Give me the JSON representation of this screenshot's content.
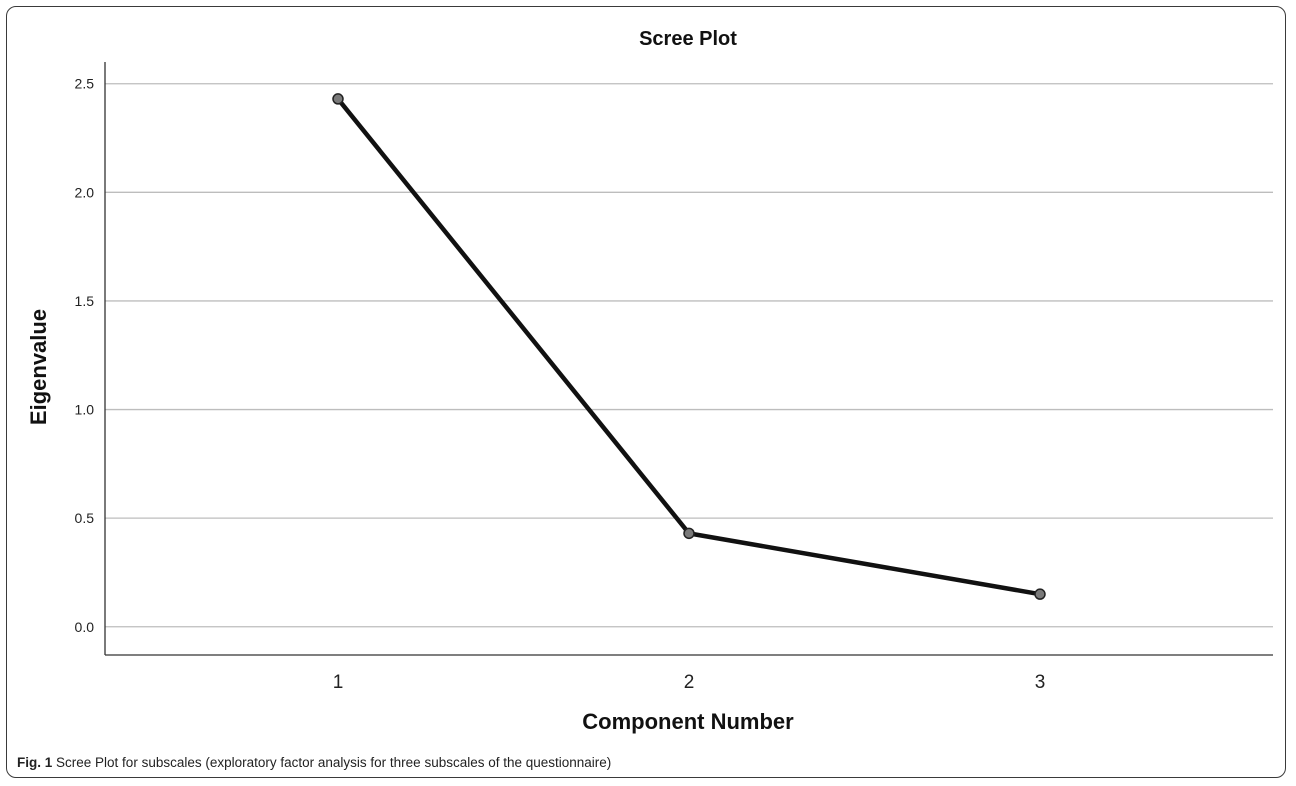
{
  "chart_data": {
    "type": "line",
    "title": "Scree Plot",
    "xlabel": "Component Number",
    "ylabel": "Eigenvalue",
    "categories": [
      "1",
      "2",
      "3"
    ],
    "series": [
      {
        "values": [
          2.43,
          0.43,
          0.15
        ]
      }
    ],
    "ylim": [
      -0.13,
      2.6
    ],
    "yticks": [
      "0.0",
      "0.5",
      "1.0",
      "1.5",
      "2.0",
      "2.5"
    ],
    "grid": true,
    "legend": "none"
  },
  "caption": {
    "label": "Fig. 1",
    "text": "Scree Plot for subscales (exploratory factor analysis for three subscales of the questionnaire)"
  }
}
